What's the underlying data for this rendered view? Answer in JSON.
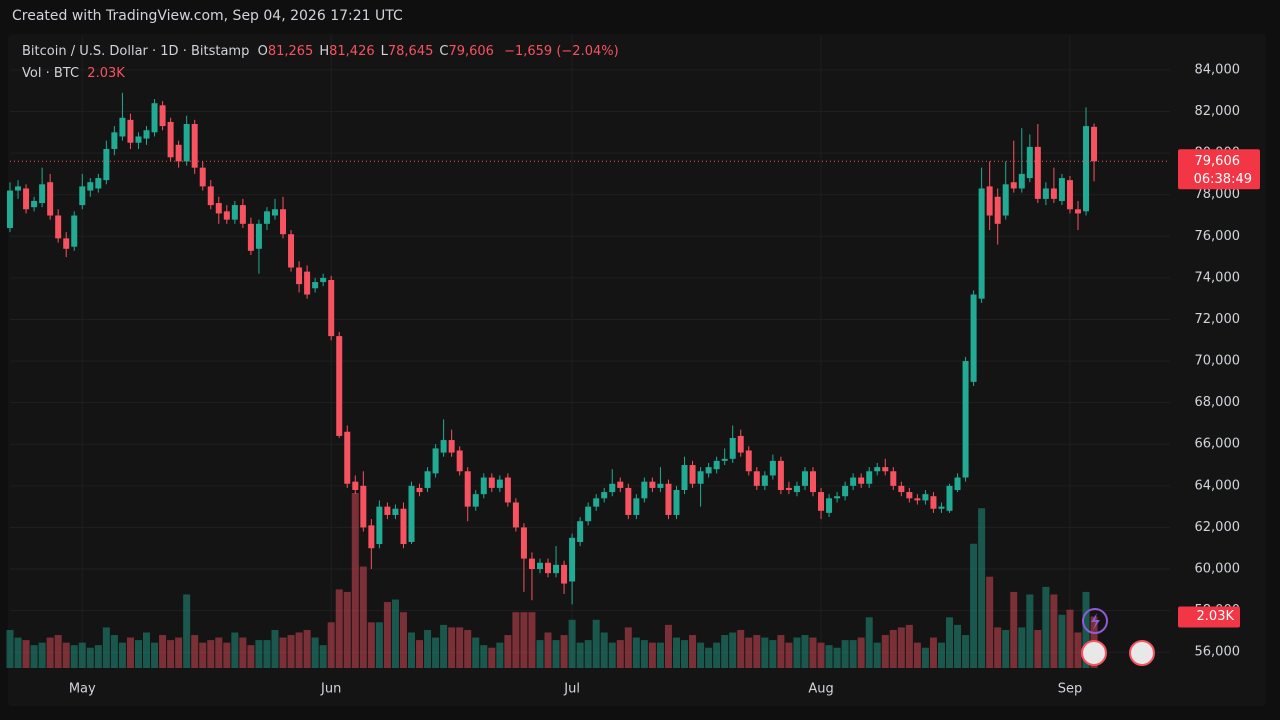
{
  "watermark": "Created with TradingView.com, Sep 04, 2026 17:21 UTC",
  "chart_data": {
    "type": "candlestick",
    "title": "Bitcoin / U.S. Dollar · 1D · Bitstamp",
    "legend": [
      {
        "key": "O",
        "label": "81,265"
      },
      {
        "key": "H",
        "label": "81,426"
      },
      {
        "key": "L",
        "label": "78,645"
      },
      {
        "key": "C",
        "label": "79,606"
      }
    ],
    "change_label": "−1,659 (−2.04%)",
    "volume_title": "Vol · BTC",
    "volume_label": "2.03K",
    "last_price_label": "79,606",
    "countdown": "06:38:49",
    "up_color": "#22ab94",
    "down_color": "#f7525f",
    "grid": true,
    "ylim": [
      55240,
      85680
    ],
    "yticks": [
      {
        "value": 56000,
        "label": "56,000"
      },
      {
        "value": 58000,
        "label": "58,000"
      },
      {
        "value": 60000,
        "label": "60,000"
      },
      {
        "value": 62000,
        "label": "62,000"
      },
      {
        "value": 64000,
        "label": "64,000"
      },
      {
        "value": 66000,
        "label": "66,000"
      },
      {
        "value": 68000,
        "label": "68,000"
      },
      {
        "value": 70000,
        "label": "70,000"
      },
      {
        "value": 72000,
        "label": "72,000"
      },
      {
        "value": 74000,
        "label": "74,000"
      },
      {
        "value": 76000,
        "label": "76,000"
      },
      {
        "value": 78000,
        "label": "78,000"
      },
      {
        "value": 80000,
        "label": "80,000"
      },
      {
        "value": 82000,
        "label": "82,000"
      },
      {
        "value": 84000,
        "label": "84,000"
      }
    ],
    "xticks": [
      {
        "value": 9,
        "label": "May"
      },
      {
        "value": 40,
        "label": "Jun"
      },
      {
        "value": 70,
        "label": "Jul"
      },
      {
        "value": 101,
        "label": "Aug"
      },
      {
        "value": 132,
        "label": "Sep"
      }
    ],
    "open": [
      76400,
      78200,
      78300,
      77400,
      77600,
      78600,
      77000,
      75900,
      75500,
      77500,
      78200,
      78300,
      78700,
      80200,
      80800,
      81600,
      80500,
      80700,
      81000,
      82300,
      81500,
      80400,
      79600,
      81400,
      79300,
      78400,
      77600,
      77200,
      76800,
      77500,
      76600,
      75400,
      76600,
      77000,
      77300,
      76100,
      74500,
      74300,
      73500,
      73800,
      73900,
      71200,
      66600,
      64200,
      64000,
      62100,
      61200,
      63000,
      62600,
      62900,
      61300,
      63900,
      63900,
      64600,
      65600,
      66200,
      65700,
      64700,
      63000,
      63600,
      64400,
      63900,
      64400,
      63200,
      62000,
      60500,
      60000,
      60300,
      59800,
      60200,
      59400,
      61300,
      62300,
      63000,
      63400,
      63700,
      64200,
      63900,
      62600,
      63400,
      64200,
      63900,
      64100,
      62600,
      63800,
      65000,
      64100,
      64600,
      64800,
      65200,
      65300,
      66400,
      65700,
      64700,
      64000,
      64500,
      65200,
      63900,
      63700,
      64000,
      64700,
      63700,
      62700,
      63400,
      63500,
      64000,
      64400,
      64100,
      64700,
      64900,
      64700,
      64000,
      63700,
      63400,
      63300,
      63500,
      62900,
      62800,
      63800,
      64400,
      69000,
      73000,
      78400,
      77900,
      77000,
      78600,
      78300,
      78800,
      80300,
      77800,
      78300,
      77700,
      78700,
      77300,
      77200,
      81265
    ],
    "high": [
      78600,
      78700,
      78500,
      77900,
      79300,
      79000,
      77300,
      76200,
      77200,
      79000,
      78800,
      79000,
      80600,
      81300,
      82900,
      81900,
      81000,
      81300,
      82600,
      82500,
      81700,
      80600,
      81800,
      81600,
      79600,
      78700,
      77900,
      77500,
      77700,
      77800,
      76900,
      76800,
      77400,
      77800,
      77900,
      76300,
      74800,
      74600,
      74000,
      74200,
      74100,
      71400,
      66900,
      64500,
      64700,
      62400,
      63300,
      63200,
      63100,
      63200,
      64200,
      64100,
      64900,
      66000,
      67200,
      66700,
      65900,
      64900,
      63800,
      64600,
      64600,
      64500,
      64600,
      63400,
      62200,
      60800,
      60500,
      60500,
      61100,
      60400,
      61700,
      62500,
      63200,
      63600,
      63900,
      64800,
      64400,
      64100,
      63600,
      64400,
      64400,
      64900,
      64300,
      64000,
      65400,
      65200,
      64900,
      65100,
      65400,
      65800,
      66900,
      66700,
      65900,
      64900,
      64700,
      65500,
      65400,
      64200,
      64200,
      64900,
      64900,
      63900,
      63600,
      63700,
      64200,
      64600,
      64600,
      64900,
      65100,
      65300,
      64900,
      64200,
      63900,
      63600,
      63800,
      63700,
      63200,
      64100,
      64600,
      70200,
      73400,
      79300,
      79600,
      78300,
      79600,
      80600,
      81200,
      80900,
      81400,
      78600,
      79300,
      79000,
      78900,
      77700,
      82200,
      81426
    ],
    "low": [
      76200,
      77800,
      77100,
      77200,
      77400,
      76800,
      75700,
      75000,
      75300,
      77300,
      77900,
      78100,
      78500,
      79900,
      80600,
      80200,
      80200,
      80400,
      80800,
      81100,
      79600,
      79300,
      79400,
      79000,
      78200,
      77300,
      76600,
      76600,
      76600,
      76400,
      75100,
      74200,
      76300,
      76800,
      75900,
      74300,
      73300,
      73000,
      73300,
      73600,
      71000,
      66300,
      63900,
      63600,
      61800,
      60000,
      61000,
      62400,
      62400,
      61000,
      61200,
      63500,
      63700,
      64400,
      65400,
      65400,
      64500,
      62300,
      62800,
      63400,
      63700,
      63700,
      63000,
      61800,
      58900,
      58500,
      59800,
      59600,
      59600,
      58800,
      58300,
      61100,
      62100,
      62800,
      63200,
      63500,
      63700,
      62400,
      62400,
      63200,
      63700,
      63700,
      62400,
      62400,
      63600,
      63900,
      63000,
      64400,
      64600,
      65000,
      65100,
      65400,
      64500,
      63800,
      63800,
      64300,
      63600,
      63600,
      63500,
      63800,
      63500,
      62400,
      62500,
      63200,
      63300,
      63800,
      63900,
      63900,
      64500,
      64500,
      63800,
      63500,
      63200,
      63100,
      63100,
      62700,
      62700,
      62700,
      63700,
      64200,
      68800,
      72800,
      76300,
      75600,
      76800,
      78100,
      78100,
      78600,
      77600,
      77500,
      77600,
      77500,
      77100,
      76300,
      77000,
      78645
    ],
    "close": [
      78200,
      78400,
      77300,
      77700,
      78500,
      77000,
      75900,
      75400,
      77000,
      78400,
      78600,
      78800,
      80200,
      81000,
      81700,
      80500,
      80800,
      81100,
      82400,
      81300,
      79800,
      79600,
      81400,
      79300,
      78400,
      77500,
      77100,
      76800,
      77500,
      76600,
      75300,
      76600,
      77200,
      77300,
      76100,
      74500,
      73700,
      73200,
      73800,
      74000,
      71200,
      66400,
      64100,
      63800,
      62000,
      61000,
      63000,
      62600,
      62900,
      61200,
      64000,
      63700,
      64700,
      65800,
      66200,
      65600,
      64700,
      63000,
      63600,
      64400,
      63900,
      64300,
      63200,
      62000,
      60500,
      60000,
      60300,
      59800,
      60200,
      59300,
      61500,
      62300,
      63000,
      63400,
      63700,
      64100,
      63900,
      62600,
      63400,
      64200,
      63900,
      64100,
      62600,
      63800,
      65000,
      64100,
      64700,
      64900,
      65200,
      65300,
      66300,
      65600,
      64700,
      64000,
      64500,
      65200,
      63800,
      63800,
      64000,
      64700,
      63700,
      62800,
      63400,
      63500,
      64000,
      64400,
      64100,
      64700,
      64900,
      64700,
      64000,
      63700,
      63400,
      63300,
      63600,
      62900,
      63000,
      64000,
      64400,
      70000,
      73200,
      78300,
      77000,
      76600,
      78500,
      78300,
      79000,
      80300,
      77800,
      78300,
      77800,
      78800,
      77300,
      77100,
      81300,
      79606
    ],
    "volume": [
      1500,
      1200,
      1100,
      900,
      1000,
      1200,
      1300,
      1000,
      900,
      1000,
      800,
      900,
      1600,
      1300,
      1000,
      1200,
      1100,
      1400,
      1000,
      1300,
      1100,
      1200,
      2900,
      1300,
      1000,
      1100,
      1200,
      1000,
      1400,
      1200,
      900,
      1100,
      1100,
      1500,
      1200,
      1300,
      1400,
      1500,
      1200,
      900,
      1800,
      3100,
      3000,
      6900,
      4000,
      1800,
      1800,
      2600,
      2700,
      2200,
      1400,
      1100,
      1500,
      1200,
      1700,
      1600,
      1600,
      1500,
      1200,
      900,
      800,
      1000,
      1300,
      2200,
      2200,
      2200,
      1100,
      1400,
      1100,
      1300,
      1900,
      1000,
      1100,
      1900,
      1400,
      1000,
      1100,
      1600,
      1200,
      1100,
      1000,
      1000,
      1700,
      1200,
      1100,
      1300,
      1000,
      800,
      1000,
      1300,
      1400,
      1500,
      1200,
      1300,
      1200,
      1100,
      1300,
      1000,
      1200,
      1300,
      1200,
      1000,
      900,
      800,
      1100,
      1100,
      1200,
      2000,
      1000,
      1300,
      1500,
      1600,
      1700,
      1000,
      800,
      1200,
      1000,
      2000,
      1700,
      1300,
      4900,
      6300,
      3600,
      1600,
      1500,
      3000,
      1600,
      2900,
      1500,
      3200,
      2900,
      2100,
      2300,
      1400,
      3000,
      2030
    ]
  }
}
